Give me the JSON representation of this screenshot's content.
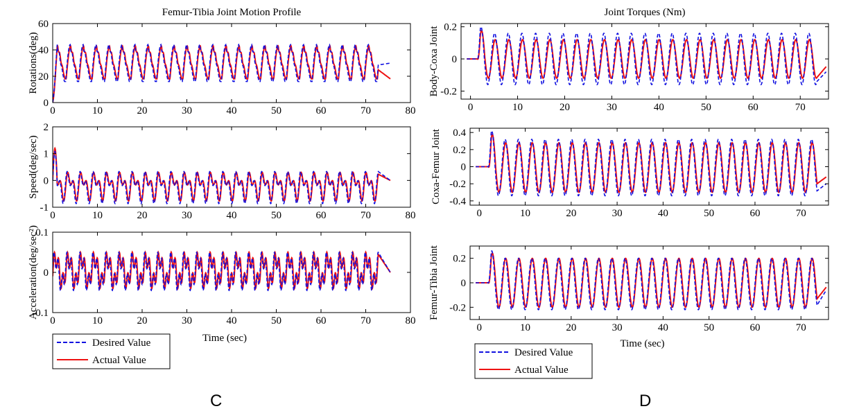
{
  "panel_labels": {
    "left": "C",
    "right": "D"
  },
  "colors": {
    "desired": "#1010e0",
    "actual": "#ee1111"
  },
  "legend": {
    "desired": "Desired Value",
    "actual": "Actual Value"
  },
  "chart_data": [
    {
      "type": "line",
      "id": "C1",
      "title": "Femur-Tibia Joint Motion Profile",
      "xlabel": "",
      "ylabel": "Rotations(deg)",
      "xlim": [
        0,
        80
      ],
      "ylim": [
        0,
        60
      ],
      "xticks": [
        0,
        10,
        20,
        30,
        40,
        50,
        60,
        70,
        80
      ],
      "yticks": [
        0,
        20,
        40,
        60
      ],
      "wave": {
        "period_sec": 2.9,
        "start_sec": 0,
        "end_sec": 72.8,
        "final_sec": 75.5,
        "desired_min": 16,
        "desired_max": 44,
        "actual_min": 18,
        "actual_max": 43,
        "initial": 0,
        "final": 30
      },
      "series": [
        {
          "name": "Desired Value"
        },
        {
          "name": "Actual Value"
        }
      ]
    },
    {
      "type": "line",
      "id": "C2",
      "title": "",
      "xlabel": "",
      "ylabel": "Speed(deg/sec)",
      "xlim": [
        0,
        80
      ],
      "ylim": [
        -1,
        2
      ],
      "xticks": [
        0,
        10,
        20,
        30,
        40,
        50,
        60,
        70,
        80
      ],
      "yticks": [
        -1,
        0,
        1,
        2
      ],
      "wave": {
        "period_sec": 2.9,
        "start_sec": 0,
        "end_sec": 72.8,
        "final_sec": 75.5,
        "desired_min": -0.9,
        "desired_max": 0.5,
        "actual_min": -0.8,
        "actual_max": 0.45,
        "initial_peak": 1.2,
        "final": 0
      },
      "series": [
        {
          "name": "Desired Value"
        },
        {
          "name": "Actual Value"
        }
      ]
    },
    {
      "type": "line",
      "id": "C3",
      "title": "",
      "xlabel": "Time (sec)",
      "ylabel": "Acceleration(deg/sec²)",
      "xlim": [
        0,
        80
      ],
      "ylim": [
        -0.1,
        0.1
      ],
      "xticks": [
        0,
        10,
        20,
        30,
        40,
        50,
        60,
        70,
        80
      ],
      "yticks": [
        -0.1,
        0,
        0.1
      ],
      "wave": {
        "period_sec": 2.9,
        "start_sec": 0,
        "end_sec": 72.8,
        "final_sec": 75.5,
        "desired_min": -0.05,
        "desired_max": 0.055,
        "actual_min": -0.045,
        "actual_max": 0.055,
        "final": 0
      },
      "series": [
        {
          "name": "Desired Value"
        },
        {
          "name": "Actual Value"
        }
      ]
    },
    {
      "type": "line",
      "id": "D1",
      "title": "Joint Torques (Nm)",
      "xlabel": "",
      "ylabel": "Body-Coxa Joint",
      "xlim": [
        -2,
        76
      ],
      "ylim": [
        -0.25,
        0.22
      ],
      "xticks": [
        0,
        10,
        20,
        30,
        40,
        50,
        60,
        70
      ],
      "yticks": [
        -0.2,
        0,
        0.2
      ],
      "wave": {
        "period_sec": 2.9,
        "start_sec": 1.5,
        "end_sec": 73.5,
        "final_sec": 75.5,
        "desired_min": -0.16,
        "desired_max": 0.16,
        "actual_min": -0.12,
        "actual_max": 0.12,
        "first_peak": 0.2,
        "final": -0.08
      },
      "series": [
        {
          "name": "Desired Value"
        },
        {
          "name": "Actual Value"
        }
      ]
    },
    {
      "type": "line",
      "id": "D2",
      "title": "",
      "xlabel": "",
      "ylabel": "Coxa-Femur Joint",
      "xlim": [
        -2,
        76
      ],
      "ylim": [
        -0.45,
        0.45
      ],
      "xticks": [
        0,
        10,
        20,
        30,
        40,
        50,
        60,
        70
      ],
      "yticks": [
        -0.4,
        -0.2,
        0,
        0.2,
        0.4
      ],
      "wave": {
        "period_sec": 2.9,
        "start_sec": 2.0,
        "end_sec": 73.5,
        "final_sec": 75.5,
        "desired_min": -0.34,
        "desired_max": 0.32,
        "actual_min": -0.3,
        "actual_max": 0.28,
        "first_peak": 0.42,
        "final": -0.2
      },
      "series": [
        {
          "name": "Desired Value"
        },
        {
          "name": "Actual Value"
        }
      ]
    },
    {
      "type": "line",
      "id": "D3",
      "title": "",
      "xlabel": "Time (sec)",
      "ylabel": "Femur-Tibia Joint",
      "xlim": [
        -2,
        76
      ],
      "ylim": [
        -0.3,
        0.3
      ],
      "xticks": [
        0,
        10,
        20,
        30,
        40,
        50,
        60,
        70
      ],
      "yticks": [
        -0.2,
        0,
        0.2
      ],
      "wave": {
        "period_sec": 2.9,
        "start_sec": 2.0,
        "end_sec": 73.5,
        "final_sec": 75.5,
        "desired_min": -0.22,
        "desired_max": 0.2,
        "actual_min": -0.2,
        "actual_max": 0.2,
        "first_peak": 0.26,
        "final": -0.06
      },
      "series": [
        {
          "name": "Desired Value"
        },
        {
          "name": "Actual Value"
        }
      ]
    }
  ]
}
